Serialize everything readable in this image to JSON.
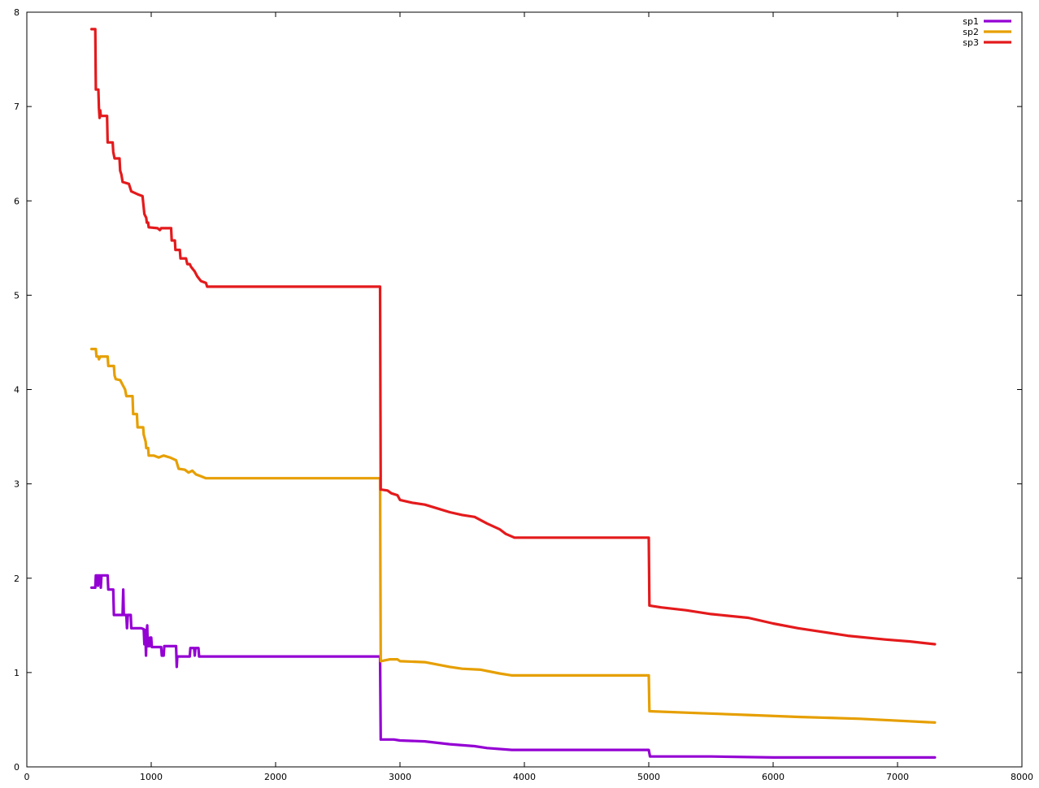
{
  "chart_data": {
    "type": "line",
    "title": "",
    "xlabel": "",
    "ylabel": "",
    "xlim": [
      0,
      8000
    ],
    "ylim": [
      0,
      8
    ],
    "grid": false,
    "legend_position": "top-right",
    "x_ticks": [
      "0",
      "1000",
      "2000",
      "3000",
      "4000",
      "5000",
      "6000",
      "7000",
      "8000"
    ],
    "y_ticks": [
      "0",
      "1",
      "2",
      "3",
      "4",
      "5",
      "6",
      "7",
      "8"
    ],
    "colors": {
      "sp1": "#9400d3",
      "sp2": "#e69f00",
      "sp3": "#e41a1c"
    },
    "series": [
      {
        "name": "sp1",
        "color": "#9400d3",
        "points": [
          [
            520,
            1.9
          ],
          [
            550,
            1.9
          ],
          [
            555,
            2.03
          ],
          [
            568,
            2.03
          ],
          [
            572,
            1.92
          ],
          [
            578,
            2.03
          ],
          [
            590,
            2.03
          ],
          [
            595,
            1.9
          ],
          [
            600,
            2.03
          ],
          [
            650,
            2.03
          ],
          [
            655,
            1.88
          ],
          [
            695,
            1.88
          ],
          [
            700,
            1.61
          ],
          [
            770,
            1.61
          ],
          [
            775,
            1.88
          ],
          [
            780,
            1.61
          ],
          [
            800,
            1.61
          ],
          [
            805,
            1.47
          ],
          [
            812,
            1.61
          ],
          [
            835,
            1.61
          ],
          [
            840,
            1.47
          ],
          [
            920,
            1.47
          ],
          [
            940,
            1.46
          ],
          [
            945,
            1.3
          ],
          [
            952,
            1.45
          ],
          [
            958,
            1.18
          ],
          [
            962,
            1.4
          ],
          [
            968,
            1.5
          ],
          [
            972,
            1.28
          ],
          [
            985,
            1.28
          ],
          [
            990,
            1.37
          ],
          [
            1000,
            1.37
          ],
          [
            1005,
            1.27
          ],
          [
            1080,
            1.27
          ],
          [
            1085,
            1.18
          ],
          [
            1100,
            1.18
          ],
          [
            1105,
            1.28
          ],
          [
            1200,
            1.28
          ],
          [
            1205,
            1.06
          ],
          [
            1210,
            1.17
          ],
          [
            1310,
            1.17
          ],
          [
            1315,
            1.26
          ],
          [
            1345,
            1.26
          ],
          [
            1350,
            1.18
          ],
          [
            1355,
            1.26
          ],
          [
            1380,
            1.26
          ],
          [
            1385,
            1.17
          ],
          [
            2840,
            1.17
          ],
          [
            2845,
            0.29
          ],
          [
            2950,
            0.29
          ],
          [
            3000,
            0.28
          ],
          [
            3200,
            0.27
          ],
          [
            3400,
            0.24
          ],
          [
            3600,
            0.22
          ],
          [
            3700,
            0.2
          ],
          [
            3900,
            0.18
          ],
          [
            5000,
            0.18
          ],
          [
            5010,
            0.11
          ],
          [
            5500,
            0.11
          ],
          [
            6000,
            0.1
          ],
          [
            6800,
            0.1
          ],
          [
            7300,
            0.1
          ]
        ]
      },
      {
        "name": "sp2",
        "color": "#e69f00",
        "points": [
          [
            520,
            4.43
          ],
          [
            555,
            4.43
          ],
          [
            560,
            4.35
          ],
          [
            575,
            4.35
          ],
          [
            580,
            4.32
          ],
          [
            590,
            4.35
          ],
          [
            650,
            4.35
          ],
          [
            655,
            4.25
          ],
          [
            700,
            4.25
          ],
          [
            705,
            4.15
          ],
          [
            715,
            4.11
          ],
          [
            750,
            4.1
          ],
          [
            770,
            4.05
          ],
          [
            790,
            4.0
          ],
          [
            800,
            3.93
          ],
          [
            850,
            3.93
          ],
          [
            855,
            3.74
          ],
          [
            885,
            3.74
          ],
          [
            890,
            3.6
          ],
          [
            935,
            3.6
          ],
          [
            940,
            3.52
          ],
          [
            955,
            3.45
          ],
          [
            960,
            3.38
          ],
          [
            975,
            3.38
          ],
          [
            980,
            3.3
          ],
          [
            1020,
            3.3
          ],
          [
            1060,
            3.28
          ],
          [
            1100,
            3.3
          ],
          [
            1150,
            3.28
          ],
          [
            1200,
            3.25
          ],
          [
            1220,
            3.16
          ],
          [
            1270,
            3.15
          ],
          [
            1300,
            3.12
          ],
          [
            1330,
            3.14
          ],
          [
            1360,
            3.1
          ],
          [
            1400,
            3.08
          ],
          [
            1440,
            3.06
          ],
          [
            2840,
            3.06
          ],
          [
            2845,
            1.12
          ],
          [
            2880,
            1.13
          ],
          [
            2920,
            1.14
          ],
          [
            2980,
            1.14
          ],
          [
            3000,
            1.12
          ],
          [
            3200,
            1.11
          ],
          [
            3400,
            1.06
          ],
          [
            3500,
            1.04
          ],
          [
            3650,
            1.03
          ],
          [
            3800,
            0.99
          ],
          [
            3900,
            0.97
          ],
          [
            5000,
            0.97
          ],
          [
            5005,
            0.59
          ],
          [
            5400,
            0.57
          ],
          [
            5800,
            0.55
          ],
          [
            6200,
            0.53
          ],
          [
            6700,
            0.51
          ],
          [
            7300,
            0.47
          ]
        ]
      },
      {
        "name": "sp3",
        "color": "#e41a1c",
        "points": [
          [
            520,
            7.82
          ],
          [
            550,
            7.82
          ],
          [
            555,
            7.18
          ],
          [
            575,
            7.18
          ],
          [
            580,
            6.98
          ],
          [
            585,
            6.88
          ],
          [
            590,
            6.96
          ],
          [
            595,
            6.9
          ],
          [
            645,
            6.9
          ],
          [
            650,
            6.62
          ],
          [
            690,
            6.62
          ],
          [
            695,
            6.52
          ],
          [
            705,
            6.45
          ],
          [
            745,
            6.45
          ],
          [
            750,
            6.32
          ],
          [
            760,
            6.28
          ],
          [
            770,
            6.2
          ],
          [
            820,
            6.18
          ],
          [
            840,
            6.1
          ],
          [
            890,
            6.07
          ],
          [
            930,
            6.05
          ],
          [
            945,
            5.86
          ],
          [
            960,
            5.82
          ],
          [
            965,
            5.77
          ],
          [
            975,
            5.77
          ],
          [
            980,
            5.72
          ],
          [
            1050,
            5.71
          ],
          [
            1070,
            5.69
          ],
          [
            1080,
            5.71
          ],
          [
            1160,
            5.71
          ],
          [
            1165,
            5.58
          ],
          [
            1190,
            5.58
          ],
          [
            1195,
            5.48
          ],
          [
            1230,
            5.48
          ],
          [
            1235,
            5.39
          ],
          [
            1280,
            5.39
          ],
          [
            1290,
            5.33
          ],
          [
            1310,
            5.33
          ],
          [
            1320,
            5.3
          ],
          [
            1350,
            5.25
          ],
          [
            1370,
            5.2
          ],
          [
            1400,
            5.15
          ],
          [
            1440,
            5.13
          ],
          [
            1450,
            5.09
          ],
          [
            2840,
            5.09
          ],
          [
            2845,
            2.94
          ],
          [
            2900,
            2.93
          ],
          [
            2930,
            2.9
          ],
          [
            2980,
            2.88
          ],
          [
            3000,
            2.83
          ],
          [
            3100,
            2.8
          ],
          [
            3200,
            2.78
          ],
          [
            3300,
            2.74
          ],
          [
            3400,
            2.7
          ],
          [
            3500,
            2.67
          ],
          [
            3600,
            2.65
          ],
          [
            3700,
            2.58
          ],
          [
            3800,
            2.52
          ],
          [
            3850,
            2.47
          ],
          [
            3920,
            2.43
          ],
          [
            5000,
            2.43
          ],
          [
            5005,
            1.71
          ],
          [
            5100,
            1.69
          ],
          [
            5300,
            1.66
          ],
          [
            5500,
            1.62
          ],
          [
            5800,
            1.58
          ],
          [
            6000,
            1.52
          ],
          [
            6200,
            1.47
          ],
          [
            6400,
            1.43
          ],
          [
            6600,
            1.39
          ],
          [
            6900,
            1.35
          ],
          [
            7100,
            1.33
          ],
          [
            7300,
            1.3
          ]
        ]
      }
    ]
  }
}
